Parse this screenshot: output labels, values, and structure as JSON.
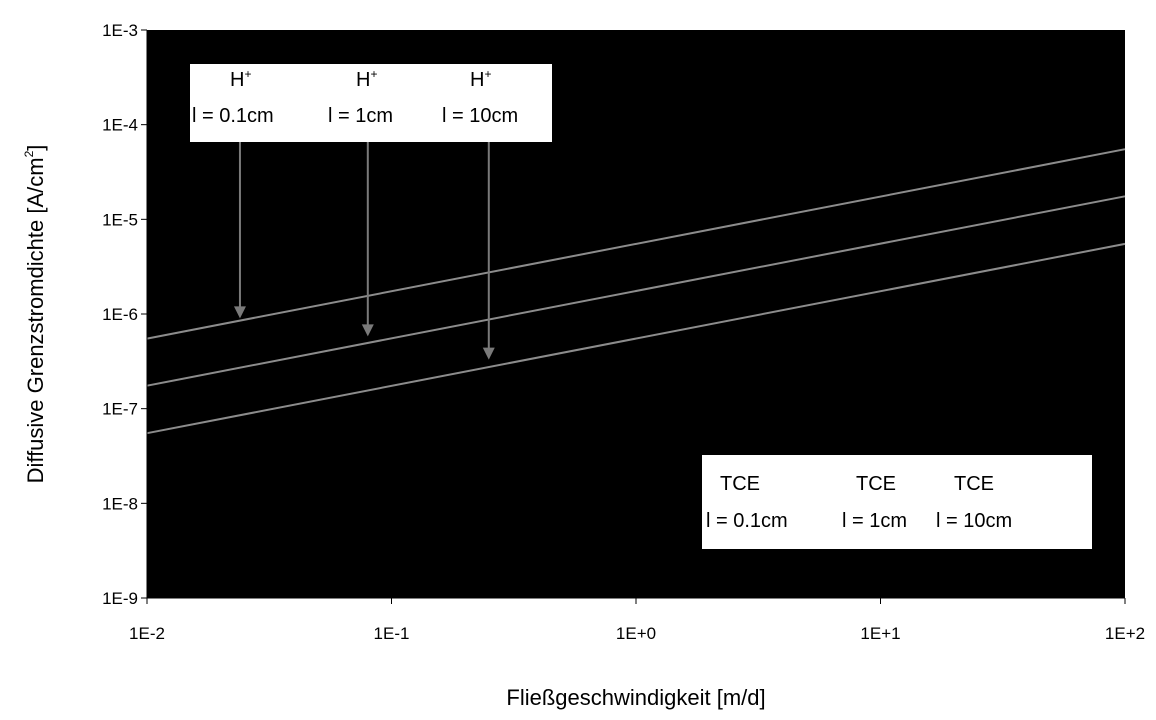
{
  "chart_data": {
    "type": "line",
    "xlabel": "Fließgeschwindigkeit [m/d]",
    "ylabel": "Diffusive Grenzstromdichte [A/cm",
    "ylabel_sup": "2",
    "ylabel_tail": "]",
    "x_scale": "log",
    "y_scale": "log",
    "xlim": [
      0.01,
      100
    ],
    "ylim": [
      1e-09,
      0.001
    ],
    "x_ticks": [
      0.01,
      0.1,
      1,
      10,
      100
    ],
    "x_tick_labels": [
      "1E-2",
      "1E-1",
      "1E+0",
      "1E+1",
      "1E+2"
    ],
    "y_ticks": [
      1e-09,
      1e-08,
      1e-07,
      1e-06,
      1e-05,
      0.0001,
      0.001
    ],
    "y_tick_labels": [
      "1E-9",
      "1E-8",
      "1E-7",
      "1E-6",
      "1E-5",
      "1E-4",
      "1E-3"
    ],
    "plot_background": "#000000",
    "line_color": "#8c8c8c",
    "grid": false,
    "series": [
      {
        "x": [
          0.01,
          100
        ],
        "y": [
          5.5e-07,
          5.5e-05
        ]
      },
      {
        "x": [
          0.01,
          100
        ],
        "y": [
          1.75e-07,
          1.75e-05
        ]
      },
      {
        "x": [
          0.01,
          100
        ],
        "y": [
          5.5e-08,
          5.5e-06
        ]
      }
    ],
    "annotations": {
      "h_box": {
        "labels": [
          {
            "species": "H",
            "charge": "+",
            "length": "l = 0.1cm"
          },
          {
            "species": "H",
            "charge": "+",
            "length": "l = 1cm"
          },
          {
            "species": "H",
            "charge": "+",
            "length": "l = 10cm"
          }
        ],
        "arrow_targets": [
          {
            "x": 0.024,
            "y": 9e-07
          },
          {
            "x": 0.08,
            "y": 5.8e-07
          },
          {
            "x": 0.25,
            "y": 3.3e-07
          }
        ]
      },
      "tce_box": {
        "labels": [
          {
            "species": "TCE",
            "length": "l = 0.1cm"
          },
          {
            "species": "TCE",
            "length": "l = 1cm"
          },
          {
            "species": "TCE",
            "length": "l = 10cm"
          }
        ]
      }
    }
  }
}
